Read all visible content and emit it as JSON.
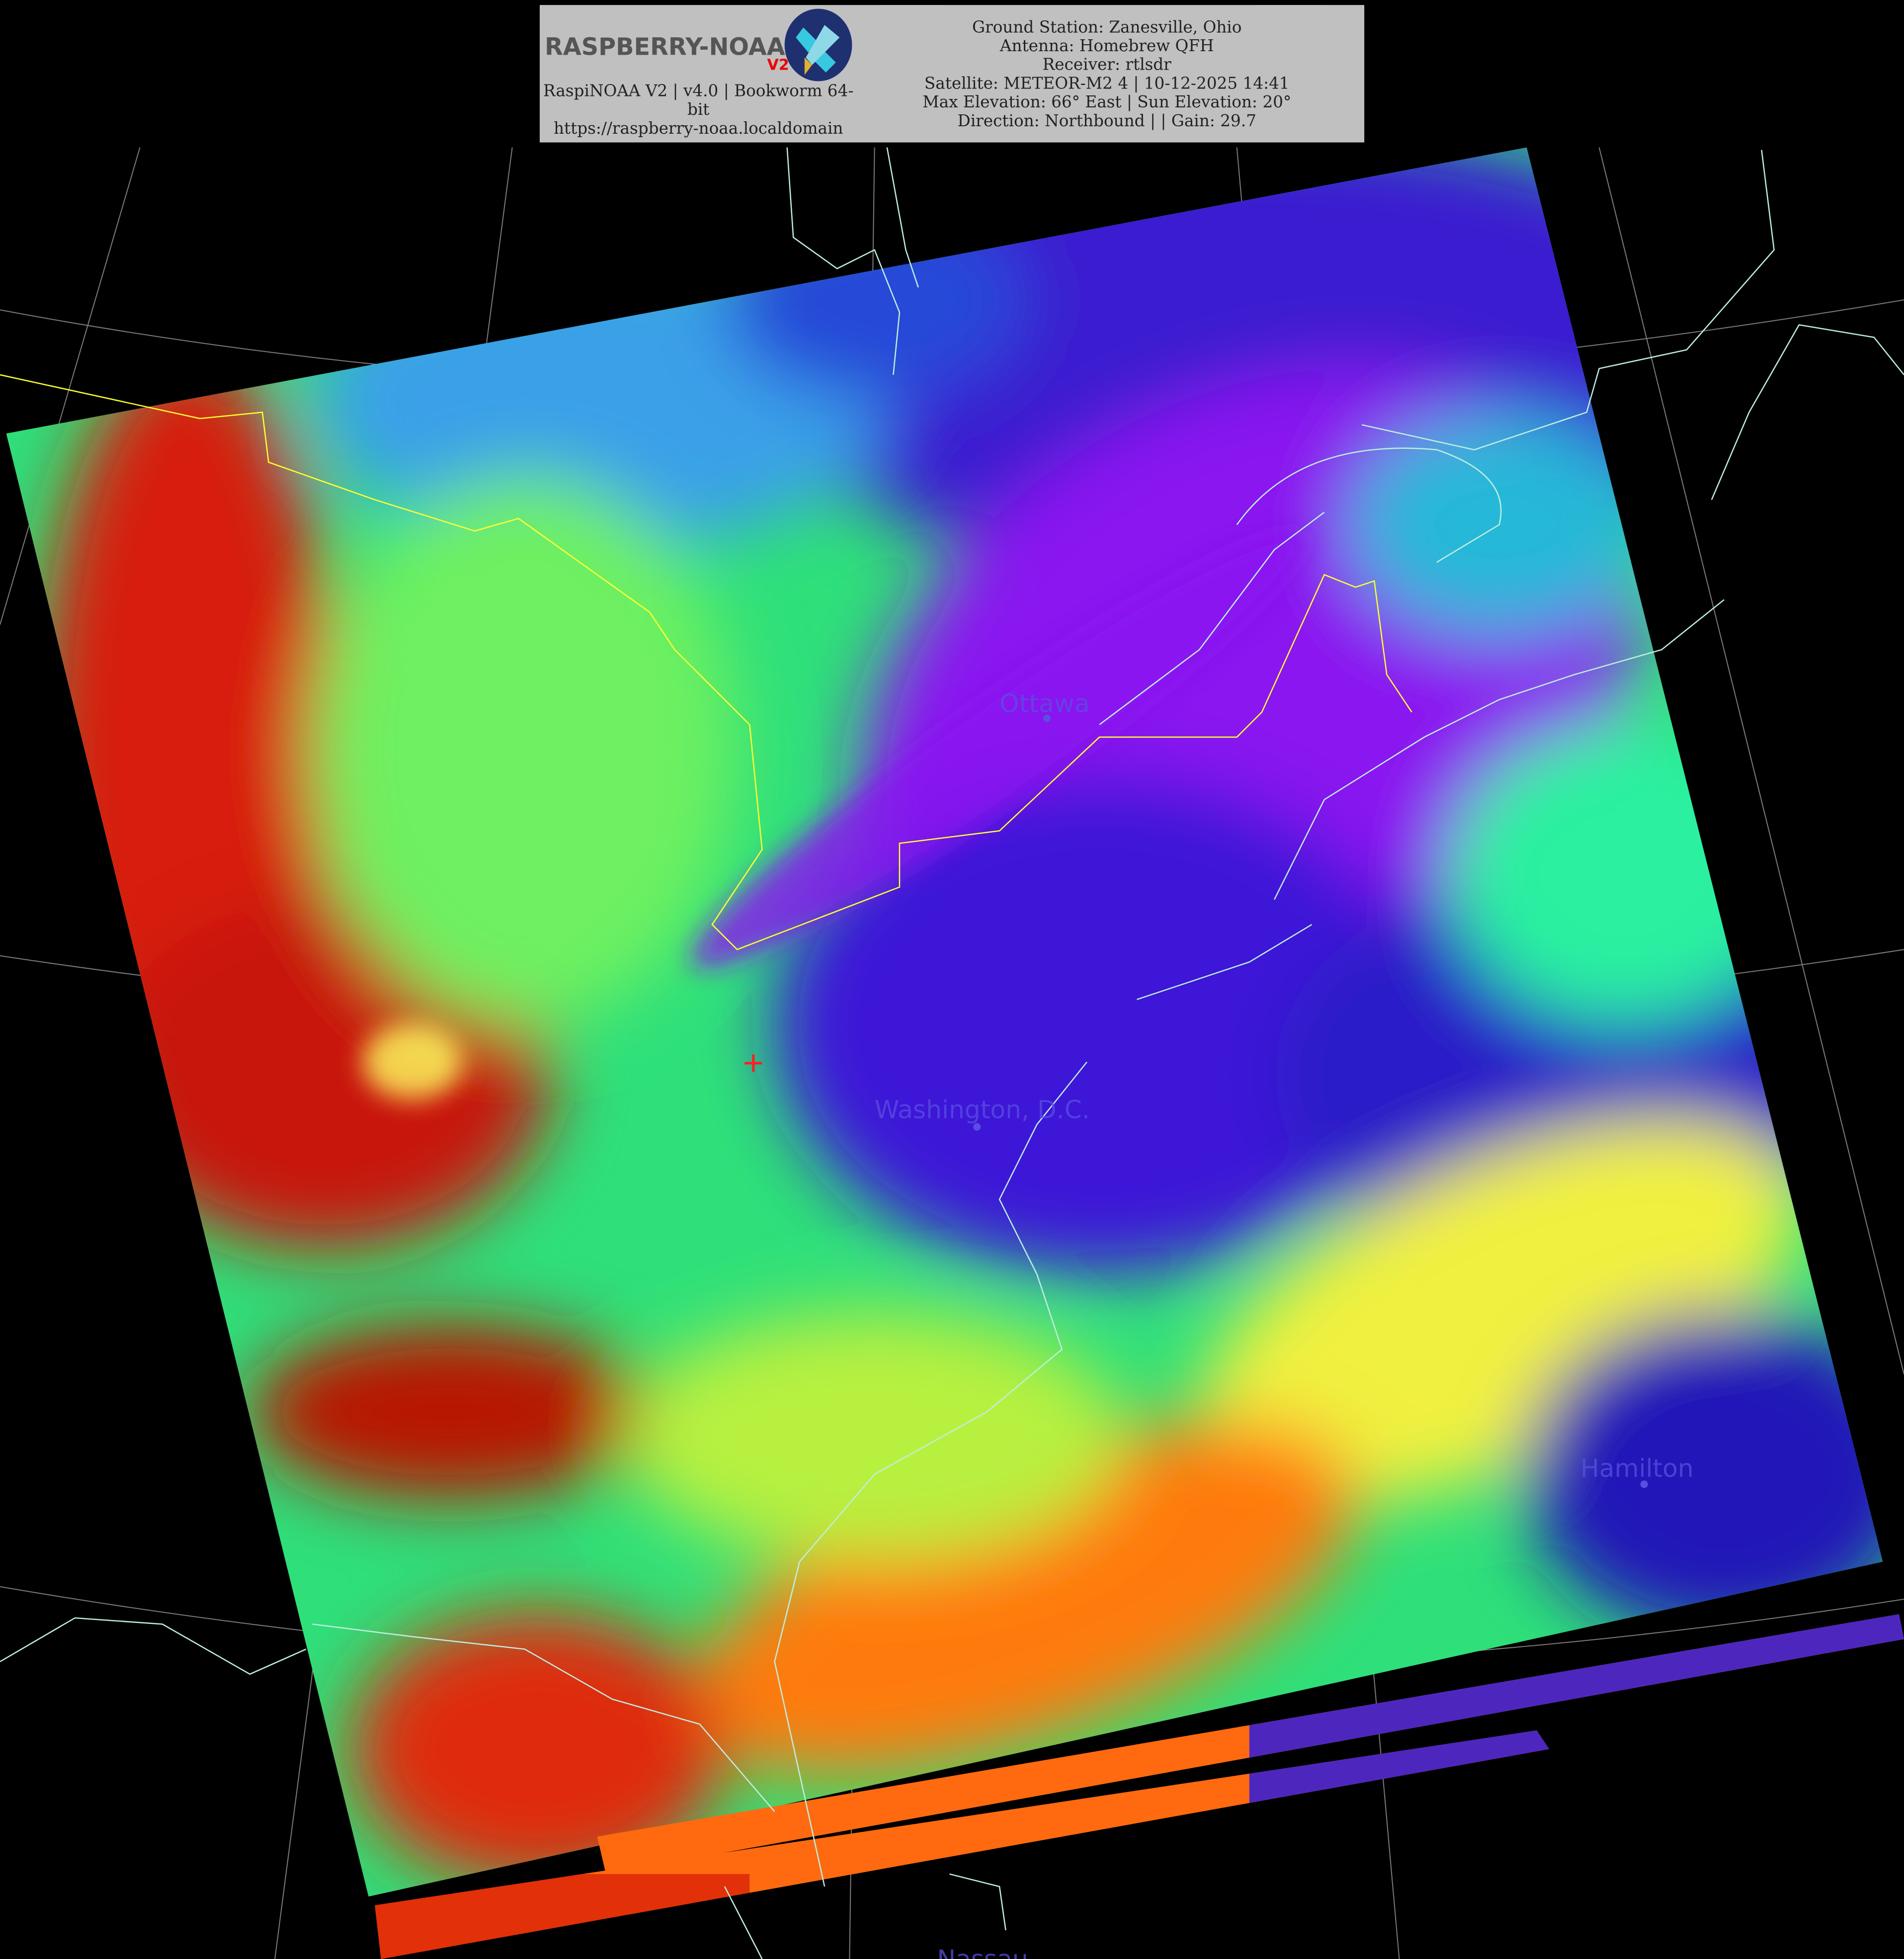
{
  "header": {
    "logo_text": "RASPBERRY-NOAA",
    "logo_version": "V2",
    "app_line1": "RaspiNOAA V2 | v4.0 | Bookworm 64-",
    "app_line2": "bit",
    "url": "https://raspberry-noaa.localdomain",
    "ground_station": "Ground Station: Zanesville, Ohio",
    "antenna": "Antenna: Homebrew QFH",
    "receiver": "Receiver: rtlsdr",
    "satellite": "Satellite: METEOR-M2 4 | 10-12-2025 14:41",
    "elevation": "Max Elevation: 66° East | Sun Elevation: 20°",
    "direction": "Direction: Northbound | | Gain: 29.7"
  },
  "map": {
    "cities": [
      "Ottawa",
      "Washington, D.C.",
      "Hamilton",
      "Nassau"
    ],
    "colors": {
      "background": "#000000",
      "header_bg": "#c0c0c0",
      "coastline": "#bfeee0",
      "border": "#ffff33",
      "graticule": "#9a9a9a",
      "city_label": "#5a4fe0",
      "ground_station_marker": "#ff2020"
    }
  }
}
